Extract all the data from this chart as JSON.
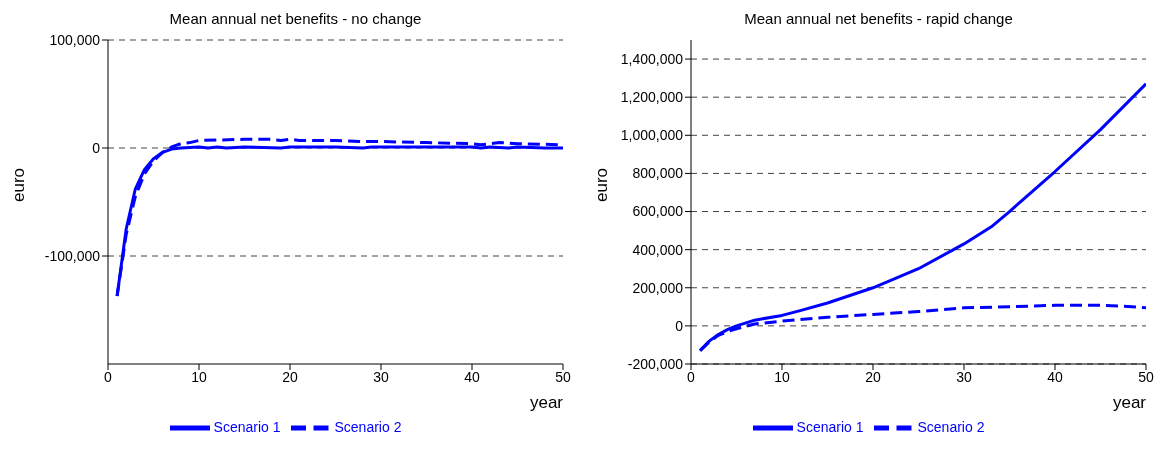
{
  "chart_data": [
    {
      "type": "line",
      "title": "Mean annual net benefits - no change",
      "xlabel": "year",
      "ylabel": "euro",
      "xlim": [
        0,
        50
      ],
      "xticks": [
        0,
        10,
        20,
        30,
        40,
        50
      ],
      "ylim": [
        -200000,
        100000
      ],
      "yticks": [
        {
          "value": -100000,
          "label": "-100,000"
        },
        0,
        {
          "value": 100000,
          "label": "100,000"
        }
      ],
      "grid": "y",
      "legend": "bottom",
      "series": [
        {
          "name": "Scenario 1",
          "color": "#0000ff",
          "line_style": "solid",
          "x": [
            1,
            2,
            3,
            4,
            5,
            6,
            7,
            8,
            10,
            11,
            12,
            13,
            15,
            19,
            20,
            25,
            28,
            29,
            35,
            40,
            41,
            42,
            44,
            45,
            48,
            50
          ],
          "values": [
            -137000,
            -75000,
            -38000,
            -20000,
            -10000,
            -4000,
            -1000,
            0,
            1000,
            0,
            1000,
            0,
            1000,
            0,
            1000,
            1000,
            0,
            1000,
            1000,
            1000,
            0,
            1000,
            0,
            1000,
            0,
            0
          ]
        },
        {
          "name": "Scenario 2",
          "color": "#0000ff",
          "line_style": "dashed",
          "x": [
            1,
            2,
            3,
            4,
            5,
            6,
            7,
            8,
            9,
            10,
            15,
            18,
            19,
            20,
            21,
            25,
            28,
            30,
            35,
            40,
            41,
            43,
            45,
            50
          ],
          "values": [
            -137000,
            -80000,
            -45000,
            -24000,
            -12000,
            -4000,
            1000,
            4000,
            5000,
            7000,
            8000,
            8000,
            7000,
            8000,
            7000,
            7000,
            6000,
            6000,
            5000,
            4000,
            3000,
            5000,
            4000,
            3000
          ]
        }
      ]
    },
    {
      "type": "line",
      "title": "Mean annual net benefits - rapid change",
      "xlabel": "year",
      "ylabel": "euro",
      "xlim": [
        0,
        50
      ],
      "xticks": [
        0,
        10,
        20,
        30,
        40,
        50
      ],
      "ylim": [
        -200000,
        1500000
      ],
      "yticks": [
        {
          "value": -200000,
          "label": "-200,000"
        },
        0,
        {
          "value": 200000,
          "label": "200,000"
        },
        {
          "value": 400000,
          "label": "400,000"
        },
        {
          "value": 600000,
          "label": "600,000"
        },
        {
          "value": 800000,
          "label": "800,000"
        },
        {
          "value": 1000000,
          "label": "1,000,000"
        },
        {
          "value": 1200000,
          "label": "1,200,000"
        },
        {
          "value": 1400000,
          "label": "1,400,000"
        }
      ],
      "grid": "y",
      "legend": "bottom",
      "series": [
        {
          "name": "Scenario 1",
          "color": "#0000ff",
          "line_style": "solid",
          "x": [
            1,
            2,
            3,
            4,
            5,
            7,
            10,
            12,
            15,
            20,
            25,
            30,
            33,
            35,
            40,
            45,
            50
          ],
          "values": [
            -130000,
            -80000,
            -45000,
            -20000,
            0,
            30000,
            55000,
            80000,
            120000,
            200000,
            300000,
            430000,
            520000,
            600000,
            810000,
            1030000,
            1270000
          ]
        },
        {
          "name": "Scenario 2",
          "color": "#0000ff",
          "line_style": "dashed",
          "x": [
            1,
            2,
            3,
            4,
            5,
            7,
            10,
            15,
            20,
            25,
            30,
            35,
            40,
            45,
            48,
            50
          ],
          "values": [
            -130000,
            -85000,
            -50000,
            -30000,
            -15000,
            10000,
            25000,
            45000,
            60000,
            75000,
            95000,
            100000,
            108000,
            108000,
            102000,
            95000
          ]
        }
      ]
    }
  ]
}
